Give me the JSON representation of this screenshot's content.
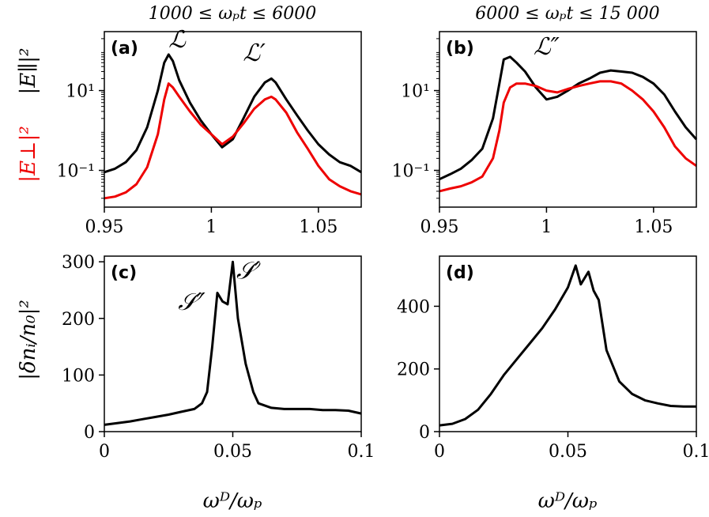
{
  "titles": {
    "left": "1000 ≤ ωₚt ≤ 6000",
    "right": "6000 ≤ ωₚt ≤ 15 000"
  },
  "ylabels": {
    "top_black": "|E∥|²",
    "top_red": "|E⊥|²",
    "bottom": "|δnᵢ/n₀|²"
  },
  "xlabels": {
    "c": "ωᴰ/ωₚ",
    "d": "ωᴰ/ωₚ"
  },
  "colors": {
    "parallel": "#000000",
    "perp": "#ee0000"
  },
  "chart_data": [
    {
      "panel": "(a)",
      "type": "line",
      "yscale": "log",
      "xlim": [
        0.95,
        1.07
      ],
      "ylim": [
        0.012,
        300
      ],
      "xticks": [
        0.95,
        1,
        1.05
      ],
      "xtick_labels": [
        "0.95",
        "1",
        "1.05"
      ],
      "yticks": [
        0.1,
        10
      ],
      "ytick_labels": [
        "10⁻¹",
        "10¹"
      ],
      "annotations": [
        {
          "text": "ℒ",
          "x": 0.984,
          "y": 120
        },
        {
          "text": "ℒ′",
          "x": 1.02,
          "y": 55
        }
      ],
      "series": [
        {
          "color": "#000000",
          "x": [
            0.95,
            0.955,
            0.96,
            0.965,
            0.97,
            0.975,
            0.978,
            0.98,
            0.982,
            0.985,
            0.99,
            0.995,
            1.0,
            1.005,
            1.01,
            1.015,
            1.02,
            1.025,
            1.028,
            1.03,
            1.035,
            1.04,
            1.045,
            1.05,
            1.055,
            1.06,
            1.065,
            1.07
          ],
          "y": [
            0.09,
            0.11,
            0.16,
            0.32,
            1.2,
            10,
            50,
            80,
            55,
            18,
            5,
            1.8,
            0.8,
            0.38,
            0.6,
            2.0,
            7,
            16,
            20,
            16,
            6,
            2.4,
            1.0,
            0.45,
            0.25,
            0.16,
            0.13,
            0.09
          ]
        },
        {
          "color": "#ee0000",
          "x": [
            0.95,
            0.955,
            0.96,
            0.965,
            0.97,
            0.975,
            0.978,
            0.98,
            0.982,
            0.985,
            0.99,
            0.995,
            1.0,
            1.005,
            1.01,
            1.015,
            1.02,
            1.025,
            1.028,
            1.03,
            1.035,
            1.04,
            1.045,
            1.05,
            1.055,
            1.06,
            1.065,
            1.07
          ],
          "y": [
            0.02,
            0.022,
            0.028,
            0.045,
            0.12,
            0.8,
            6,
            15,
            12,
            7,
            3,
            1.4,
            0.8,
            0.45,
            0.7,
            1.5,
            3.5,
            6,
            7,
            6,
            2.8,
            0.9,
            0.35,
            0.13,
            0.06,
            0.04,
            0.03,
            0.025
          ]
        }
      ]
    },
    {
      "panel": "(b)",
      "type": "line",
      "yscale": "log",
      "xlim": [
        0.95,
        1.07
      ],
      "ylim": [
        0.012,
        300
      ],
      "xticks": [
        0.95,
        1,
        1.05
      ],
      "xtick_labels": [
        "0.95",
        "1",
        "1.05"
      ],
      "yticks": [
        0.1,
        10
      ],
      "ytick_labels": [
        "10⁻¹",
        "10¹"
      ],
      "annotations": [
        {
          "text": "ℒ″",
          "x": 1.0,
          "y": 80
        }
      ],
      "series": [
        {
          "color": "#000000",
          "x": [
            0.95,
            0.955,
            0.96,
            0.965,
            0.97,
            0.975,
            0.978,
            0.98,
            0.983,
            0.986,
            0.99,
            0.995,
            1.0,
            1.005,
            1.01,
            1.015,
            1.02,
            1.025,
            1.03,
            1.035,
            1.04,
            1.045,
            1.05,
            1.055,
            1.06,
            1.065,
            1.07
          ],
          "y": [
            0.06,
            0.08,
            0.11,
            0.18,
            0.35,
            2,
            15,
            60,
            70,
            50,
            30,
            12,
            6,
            7,
            10,
            15,
            20,
            28,
            32,
            30,
            28,
            22,
            15,
            8,
            3,
            1.2,
            0.6
          ]
        },
        {
          "color": "#ee0000",
          "x": [
            0.95,
            0.955,
            0.96,
            0.965,
            0.97,
            0.975,
            0.978,
            0.98,
            0.983,
            0.986,
            0.99,
            0.995,
            1.0,
            1.005,
            1.01,
            1.015,
            1.02,
            1.025,
            1.03,
            1.035,
            1.04,
            1.045,
            1.05,
            1.055,
            1.06,
            1.065,
            1.07
          ],
          "y": [
            0.03,
            0.035,
            0.04,
            0.05,
            0.07,
            0.2,
            1,
            5,
            12,
            15,
            15,
            13,
            10,
            9,
            11,
            13,
            15,
            17,
            17,
            15,
            10,
            6,
            3,
            1.2,
            0.4,
            0.2,
            0.13
          ]
        }
      ]
    },
    {
      "panel": "(c)",
      "type": "line",
      "yscale": "linear",
      "xlim": [
        0,
        0.1
      ],
      "ylim": [
        0,
        310
      ],
      "xticks": [
        0,
        0.05,
        0.1
      ],
      "xtick_labels": [
        "0",
        "0.05",
        "0.1"
      ],
      "yticks": [
        0,
        100,
        200,
        300
      ],
      "ytick_labels": [
        "0",
        "100",
        "200",
        "300"
      ],
      "annotations": [
        {
          "text": "𝒮″",
          "x": 0.034,
          "y": 215
        },
        {
          "text": "𝒮′",
          "x": 0.056,
          "y": 270
        }
      ],
      "series": [
        {
          "color": "#000000",
          "x": [
            0,
            0.005,
            0.01,
            0.015,
            0.02,
            0.025,
            0.03,
            0.035,
            0.038,
            0.04,
            0.042,
            0.044,
            0.046,
            0.048,
            0.05,
            0.052,
            0.055,
            0.058,
            0.06,
            0.065,
            0.07,
            0.075,
            0.08,
            0.085,
            0.09,
            0.095,
            0.1
          ],
          "y": [
            12,
            15,
            18,
            22,
            26,
            30,
            35,
            40,
            50,
            70,
            150,
            245,
            230,
            225,
            300,
            200,
            120,
            70,
            50,
            42,
            40,
            40,
            40,
            38,
            38,
            37,
            32
          ]
        }
      ]
    },
    {
      "panel": "(d)",
      "type": "line",
      "yscale": "linear",
      "xlim": [
        0,
        0.1
      ],
      "ylim": [
        0,
        560
      ],
      "xticks": [
        0,
        0.05,
        0.1
      ],
      "xtick_labels": [
        "0",
        "0.05",
        "0.1"
      ],
      "yticks": [
        0,
        200,
        400
      ],
      "ytick_labels": [
        "0",
        "200",
        "400"
      ],
      "annotations": [],
      "series": [
        {
          "color": "#000000",
          "x": [
            0,
            0.005,
            0.01,
            0.015,
            0.02,
            0.025,
            0.03,
            0.035,
            0.04,
            0.045,
            0.05,
            0.053,
            0.055,
            0.058,
            0.06,
            0.062,
            0.065,
            0.07,
            0.075,
            0.08,
            0.085,
            0.09,
            0.095,
            0.1
          ],
          "y": [
            20,
            25,
            40,
            70,
            120,
            180,
            230,
            280,
            330,
            390,
            460,
            530,
            470,
            510,
            450,
            420,
            260,
            160,
            120,
            100,
            90,
            82,
            80,
            80
          ]
        }
      ]
    }
  ]
}
